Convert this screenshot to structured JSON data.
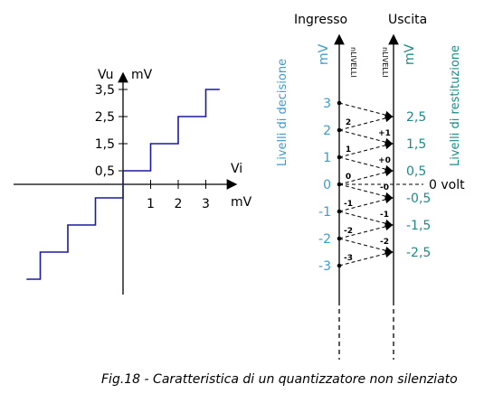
{
  "colors": {
    "axis": "#000000",
    "staircase": "#1a1aa0",
    "decision": "#3a9bd0",
    "restitution": "#1d8a8a"
  },
  "left": {
    "y_axis_label": "Vu",
    "y_unit_label": "mV",
    "x_axis_label": "Vi",
    "x_unit_label": "mV",
    "y_ticks": [
      "3,5",
      "2,5",
      "1,5",
      "0,5"
    ],
    "x_ticks": [
      "1",
      "2",
      "3"
    ],
    "staircase": {
      "x": [
        -3.5,
        -3,
        -3,
        -2,
        -2,
        -1,
        -1,
        0,
        0,
        1,
        1,
        2,
        2,
        3,
        3,
        3.5
      ],
      "y": [
        -3.5,
        -3.5,
        -2.5,
        -2.5,
        -1.5,
        -1.5,
        -0.5,
        -0.5,
        0.5,
        0.5,
        1.5,
        1.5,
        2.5,
        2.5,
        3.5,
        3.5
      ]
    }
  },
  "right": {
    "input_title": "Ingresso",
    "output_title": "Uscita",
    "input_unit": "mV",
    "output_unit": "mV",
    "input_axis_label": "nLIVELLI",
    "output_axis_label": "nLIVELLI",
    "decision_label": "Livelli di decisione",
    "restitution_label": "Livelli di restituzione",
    "zero_label": "0 volt",
    "decision_levels": [
      "3",
      "2",
      "1",
      "0",
      "-1",
      "-2",
      "-3"
    ],
    "restitution_levels": [
      "2,5",
      "1,5",
      "0,5",
      "-0,5",
      "-1,5",
      "-2,5"
    ],
    "input_codes": [
      "2",
      "1",
      "0",
      "-1",
      "-2",
      "-3"
    ],
    "output_codes": [
      "+1",
      "+0",
      "-0",
      "-1",
      "-2"
    ]
  },
  "caption": "Fig.18 - Caratteristica di un quantizzatore non silenziato"
}
